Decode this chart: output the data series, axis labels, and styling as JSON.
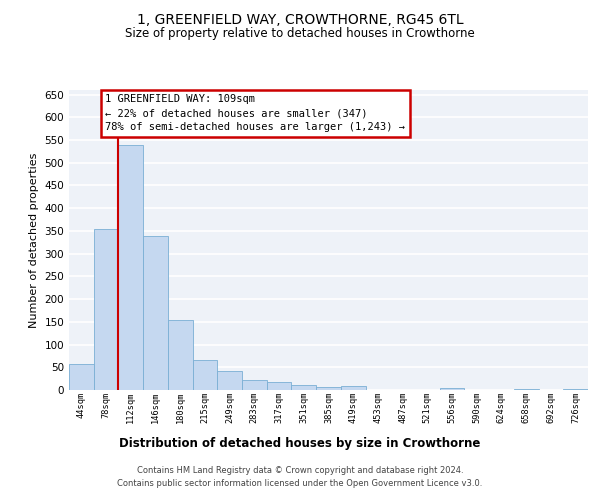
{
  "title": "1, GREENFIELD WAY, CROWTHORNE, RG45 6TL",
  "subtitle": "Size of property relative to detached houses in Crowthorne",
  "xlabel": "Distribution of detached houses by size in Crowthorne",
  "ylabel": "Number of detached properties",
  "bar_color": "#c5d8f0",
  "bar_edge_color": "#7aafd4",
  "bar_heights": [
    57,
    355,
    540,
    338,
    155,
    66,
    42,
    23,
    18,
    10,
    6,
    8,
    0,
    0,
    0,
    4,
    0,
    0,
    3,
    0,
    2
  ],
  "x_labels": [
    "44sqm",
    "78sqm",
    "112sqm",
    "146sqm",
    "180sqm",
    "215sqm",
    "249sqm",
    "283sqm",
    "317sqm",
    "351sqm",
    "385sqm",
    "419sqm",
    "453sqm",
    "487sqm",
    "521sqm",
    "556sqm",
    "590sqm",
    "624sqm",
    "658sqm",
    "692sqm",
    "726sqm"
  ],
  "ylim": [
    0,
    660
  ],
  "yticks": [
    0,
    50,
    100,
    150,
    200,
    250,
    300,
    350,
    400,
    450,
    500,
    550,
    600,
    650
  ],
  "property_line_color": "#cc0000",
  "annotation_line1": "1 GREENFIELD WAY: 109sqm",
  "annotation_line2": "← 22% of detached houses are smaller (347)",
  "annotation_line3": "78% of semi-detached houses are larger (1,243) →",
  "annotation_box_color": "#cc0000",
  "background_color": "#eef2f8",
  "grid_color": "#ffffff",
  "footer_line1": "Contains HM Land Registry data © Crown copyright and database right 2024.",
  "footer_line2": "Contains public sector information licensed under the Open Government Licence v3.0."
}
